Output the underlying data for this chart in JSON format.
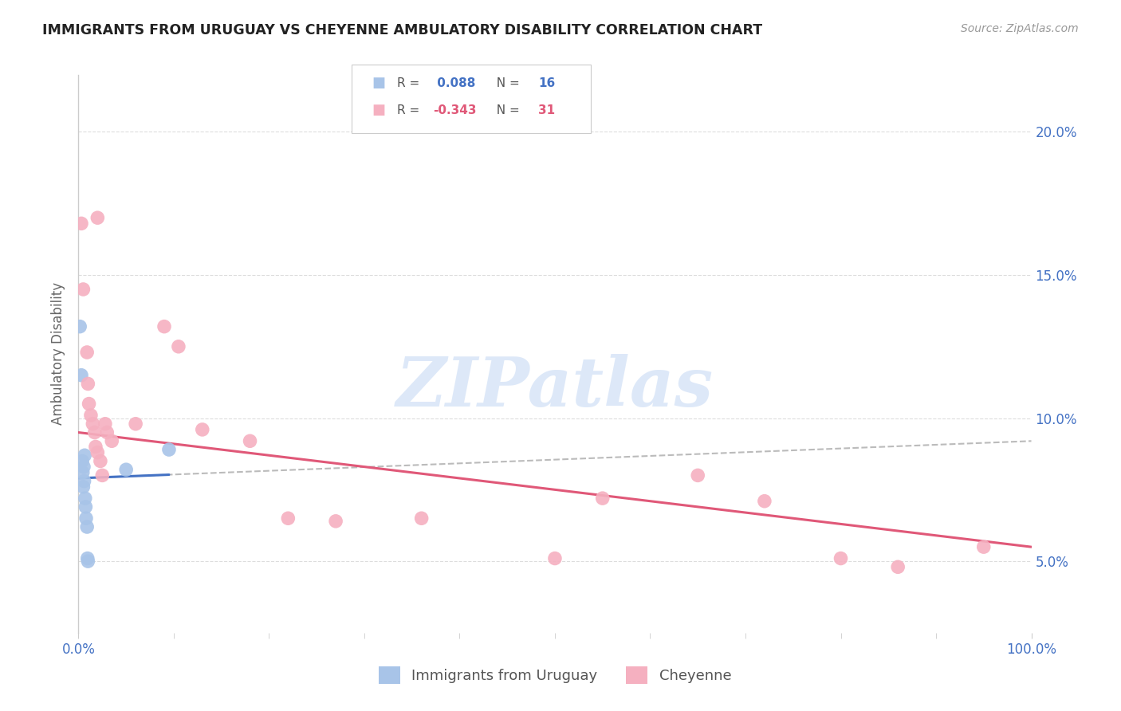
{
  "title": "IMMIGRANTS FROM URUGUAY VS CHEYENNE AMBULATORY DISABILITY CORRELATION CHART",
  "source": "Source: ZipAtlas.com",
  "ylabel": "Ambulatory Disability",
  "ytick_vals": [
    5.0,
    10.0,
    15.0,
    20.0
  ],
  "xmin": 0.0,
  "xmax": 100.0,
  "ymin": 2.5,
  "ymax": 22.0,
  "legend_blue_r": "0.088",
  "legend_blue_n": "16",
  "legend_pink_r": "-0.343",
  "legend_pink_n": "31",
  "blue_color": "#a8c4e8",
  "pink_color": "#f5b0c0",
  "blue_line_color": "#4472c4",
  "pink_line_color": "#e05878",
  "dashed_line_color": "#bbbbbb",
  "blue_points_x": [
    0.15,
    0.3,
    0.4,
    0.45,
    0.5,
    0.55,
    0.6,
    0.65,
    0.7,
    0.75,
    0.8,
    0.9,
    0.95,
    1.0,
    5.0,
    9.5
  ],
  "blue_points_y": [
    13.2,
    11.5,
    8.5,
    8.1,
    7.6,
    8.3,
    7.8,
    8.7,
    7.2,
    6.9,
    6.5,
    6.2,
    5.1,
    5.0,
    8.2,
    8.9
  ],
  "pink_points_x": [
    0.3,
    0.5,
    0.9,
    1.0,
    1.1,
    1.3,
    1.5,
    1.7,
    1.8,
    2.0,
    2.3,
    2.5,
    2.8,
    3.0,
    3.5,
    6.0,
    9.0,
    10.5,
    13.0,
    18.0,
    2.0,
    22.0,
    27.0,
    36.0,
    50.0,
    55.0,
    65.0,
    72.0,
    80.0,
    86.0,
    95.0
  ],
  "pink_points_y": [
    16.8,
    14.5,
    12.3,
    11.2,
    10.5,
    10.1,
    9.8,
    9.5,
    9.0,
    8.8,
    8.5,
    8.0,
    9.8,
    9.5,
    9.2,
    9.8,
    13.2,
    12.5,
    9.6,
    9.2,
    17.0,
    6.5,
    6.4,
    6.5,
    5.1,
    7.2,
    8.0,
    7.1,
    5.1,
    4.8,
    5.5
  ],
  "watermark_text": "ZIPatlas",
  "watermark_color": "#ccddf5",
  "background_color": "#ffffff",
  "grid_color": "#dddddd"
}
